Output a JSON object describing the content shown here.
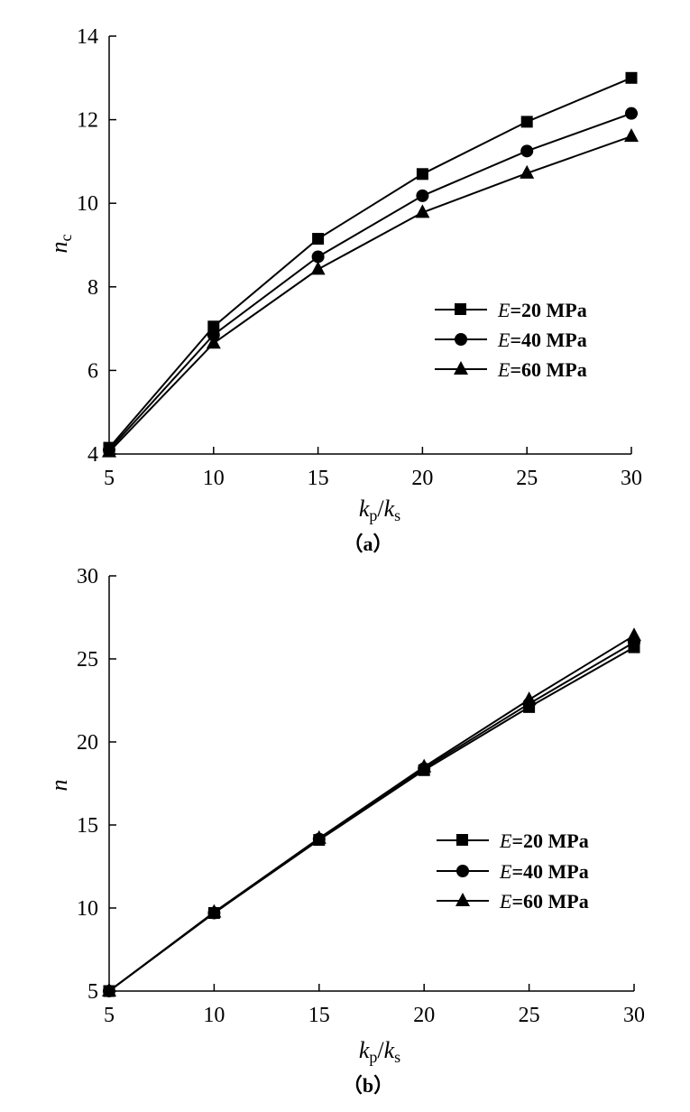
{
  "chart_data": [
    {
      "type": "line",
      "panel_caption": "（a）",
      "xlabel_main": "k",
      "xlabel_sub1": "p",
      "xlabel_sep": "/",
      "xlabel_k2": "k",
      "xlabel_sub2": "s",
      "ylabel_main": "n",
      "ylabel_sub": "c",
      "x": [
        5,
        10,
        15,
        20,
        25,
        30
      ],
      "xlim": [
        5,
        30
      ],
      "ylim": [
        4,
        14
      ],
      "xticks": [
        5,
        10,
        15,
        20,
        25,
        30
      ],
      "yticks": [
        4,
        6,
        8,
        10,
        12,
        14
      ],
      "legend_position": "center-right",
      "series": [
        {
          "name_var": "E",
          "name_rest": "=20 MPa",
          "marker": "square",
          "values": [
            4.15,
            7.05,
            9.15,
            10.7,
            11.95,
            13.0
          ]
        },
        {
          "name_var": "E",
          "name_rest": "=40 MPa",
          "marker": "circle",
          "values": [
            4.1,
            6.85,
            8.72,
            10.18,
            11.25,
            12.15
          ]
        },
        {
          "name_var": "E",
          "name_rest": "=60 MPa",
          "marker": "triangle",
          "values": [
            4.05,
            6.65,
            8.42,
            9.78,
            10.72,
            11.6
          ]
        }
      ]
    },
    {
      "type": "line",
      "panel_caption": "（b）",
      "xlabel_main": "k",
      "xlabel_sub1": "p",
      "xlabel_sep": "/",
      "xlabel_k2": "k",
      "xlabel_sub2": "s",
      "ylabel_main": "n",
      "ylabel_sub": "",
      "x": [
        5,
        10,
        15,
        20,
        25,
        30
      ],
      "xlim": [
        5,
        30
      ],
      "ylim": [
        5,
        30
      ],
      "xticks": [
        5,
        10,
        15,
        20,
        25,
        30
      ],
      "yticks": [
        5,
        10,
        15,
        20,
        25,
        30
      ],
      "legend_position": "center-right",
      "series": [
        {
          "name_var": "E",
          "name_rest": "=20 MPa",
          "marker": "square",
          "values": [
            5.0,
            9.7,
            14.1,
            18.3,
            22.1,
            25.7
          ]
        },
        {
          "name_var": "E",
          "name_rest": "=40 MPa",
          "marker": "circle",
          "values": [
            5.0,
            9.7,
            14.15,
            18.4,
            22.3,
            26.0
          ]
        },
        {
          "name_var": "E",
          "name_rest": "=60 MPa",
          "marker": "triangle",
          "values": [
            5.0,
            9.75,
            14.2,
            18.5,
            22.55,
            26.4
          ]
        }
      ]
    }
  ]
}
